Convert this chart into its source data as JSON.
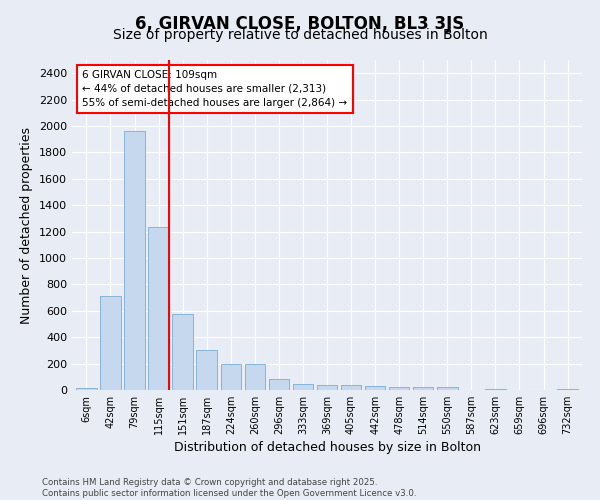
{
  "title": "6, GIRVAN CLOSE, BOLTON, BL3 3JS",
  "subtitle": "Size of property relative to detached houses in Bolton",
  "xlabel": "Distribution of detached houses by size in Bolton",
  "ylabel": "Number of detached properties",
  "categories": [
    "6sqm",
    "42sqm",
    "79sqm",
    "115sqm",
    "151sqm",
    "187sqm",
    "224sqm",
    "260sqm",
    "296sqm",
    "333sqm",
    "369sqm",
    "405sqm",
    "442sqm",
    "478sqm",
    "514sqm",
    "550sqm",
    "587sqm",
    "623sqm",
    "659sqm",
    "696sqm",
    "732sqm"
  ],
  "values": [
    15,
    710,
    1960,
    1235,
    575,
    305,
    200,
    200,
    80,
    45,
    35,
    35,
    30,
    20,
    20,
    20,
    0,
    5,
    0,
    0,
    5
  ],
  "bar_color": "#c5d8ee",
  "bar_edge_color": "#7aadd4",
  "vline_x": 3.44,
  "vline_color": "red",
  "annotation_text": "6 GIRVAN CLOSE: 109sqm\n← 44% of detached houses are smaller (2,313)\n55% of semi-detached houses are larger (2,864) →",
  "annotation_box_color": "white",
  "annotation_box_edge": "red",
  "ylim": [
    0,
    2500
  ],
  "yticks": [
    0,
    200,
    400,
    600,
    800,
    1000,
    1200,
    1400,
    1600,
    1800,
    2000,
    2200,
    2400
  ],
  "background_color": "#e8edf5",
  "axes_background": "#e8edf5",
  "grid_color": "white",
  "title_fontsize": 12,
  "subtitle_fontsize": 10,
  "footer_text": "Contains HM Land Registry data © Crown copyright and database right 2025.\nContains public sector information licensed under the Open Government Licence v3.0."
}
